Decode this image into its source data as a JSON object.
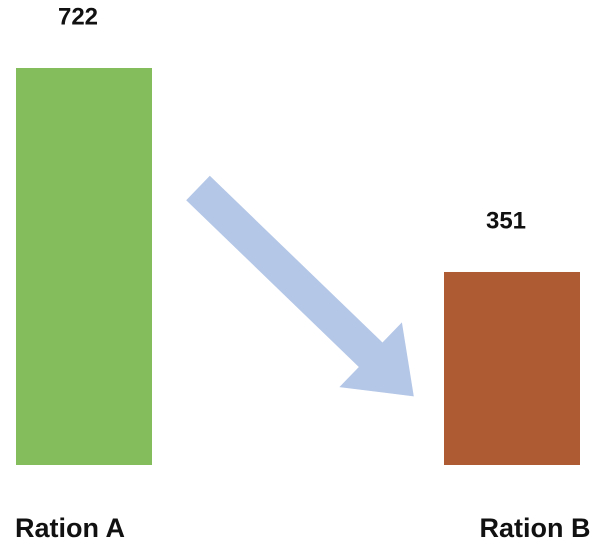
{
  "chart_data": {
    "type": "bar",
    "categories": [
      "Ration A",
      "Ration B"
    ],
    "values": [
      722,
      351
    ],
    "colors": [
      "#84bd5c",
      "#ae5a32"
    ]
  }
}
